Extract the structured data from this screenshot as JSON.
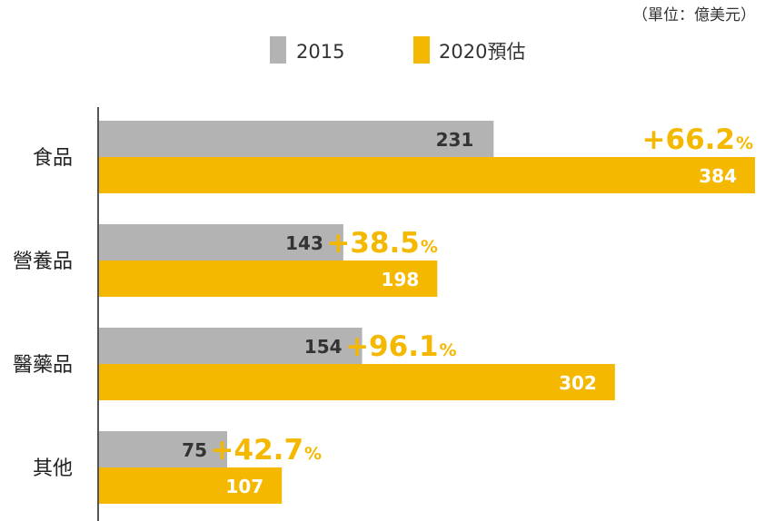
{
  "unit_note": "（單位：億美元）",
  "colors": {
    "s2015": "#b3b3b3",
    "s2020": "#f5b800",
    "axis": "#555555",
    "growth": "#f5b800"
  },
  "chart_data": {
    "type": "bar",
    "orientation": "horizontal",
    "categories": [
      "食品",
      "營養品",
      "醫藥品",
      "其他"
    ],
    "series": [
      {
        "name": "2015",
        "values": [
          231,
          143,
          154,
          75
        ]
      },
      {
        "name": "2020預估",
        "values": [
          384,
          198,
          302,
          107
        ]
      }
    ],
    "growth": [
      {
        "value": "+66.2",
        "unit": "%"
      },
      {
        "value": "+38.5",
        "unit": "%"
      },
      {
        "value": "+96.1",
        "unit": "%"
      },
      {
        "value": "+42.7",
        "unit": "%"
      }
    ],
    "legend_position": "top-center",
    "grid": false
  }
}
